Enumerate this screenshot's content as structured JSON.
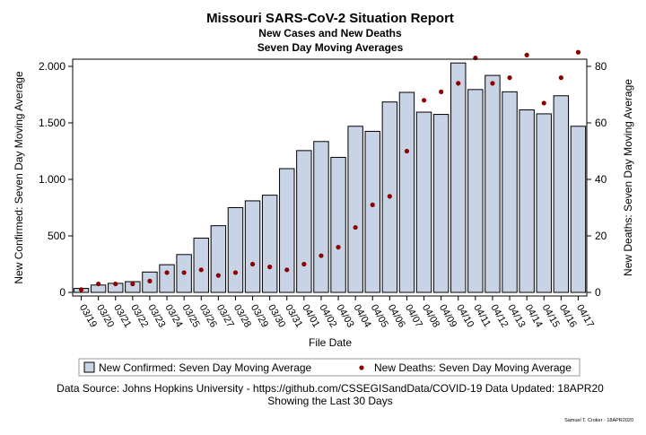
{
  "chart_data": {
    "type": "bar",
    "title": "Missouri SARS-CoV-2 Situation Report",
    "subtitle": [
      "New Cases and New Deaths",
      "Seven Day Moving Averages"
    ],
    "xlabel": "File Date",
    "ylabel_left": "New Confirmed: Seven Day Moving Average",
    "ylabel_right": "New Deaths: Seven Day Moving Average",
    "ylim_left": [
      0,
      2000
    ],
    "yticks_left": [
      0,
      500,
      1000,
      1500,
      2000
    ],
    "ytick_labels_left": [
      "0",
      "500",
      "1.000",
      "1.500",
      "2.000"
    ],
    "ylim_right": [
      0,
      80
    ],
    "yticks_right": [
      0,
      20,
      40,
      60,
      80
    ],
    "ytick_labels_right": [
      "0",
      "20",
      "40",
      "60",
      "80"
    ],
    "categories": [
      "03/19",
      "03/20",
      "03/21",
      "03/22",
      "03/23",
      "03/24",
      "03/25",
      "03/26",
      "03/27",
      "03/28",
      "03/29",
      "03/30",
      "03/31",
      "04/01",
      "04/02",
      "04/03",
      "04/04",
      "04/05",
      "04/06",
      "04/07",
      "04/08",
      "04/09",
      "04/10",
      "04/11",
      "04/12",
      "04/13",
      "04/14",
      "04/15",
      "04/16",
      "04/17"
    ],
    "series": [
      {
        "name": "New Confirmed: Seven Day Moving Average",
        "axis": "left",
        "kind": "bar",
        "color": "#c8d3e6",
        "values": [
          35,
          65,
          80,
          95,
          180,
          245,
          335,
          480,
          590,
          750,
          810,
          860,
          1095,
          1255,
          1335,
          1195,
          1470,
          1425,
          1685,
          1770,
          1595,
          1575,
          2030,
          1795,
          1920,
          1775,
          1615,
          1580,
          1740,
          1470
        ]
      },
      {
        "name": "New Deaths: Seven Day Moving Average",
        "axis": "right",
        "kind": "scatter",
        "color": "#8b0000",
        "values": [
          1,
          3,
          3,
          3,
          4,
          7,
          7,
          8,
          6,
          7,
          10,
          9,
          8,
          10,
          13,
          16,
          23,
          31,
          34,
          50,
          68,
          71,
          74,
          83,
          74,
          76,
          84,
          67,
          76,
          85
        ]
      }
    ],
    "grid": false,
    "legend_position": "bottom"
  },
  "footer": {
    "source": "Data Source: Johns Hopkins University - https://github.com/CSSEGISandData/COVID-19 Data Updated: 18APR20",
    "period": "Showing the Last 30 Days",
    "credit": "Samuel T. Croker - 18APR2020"
  }
}
